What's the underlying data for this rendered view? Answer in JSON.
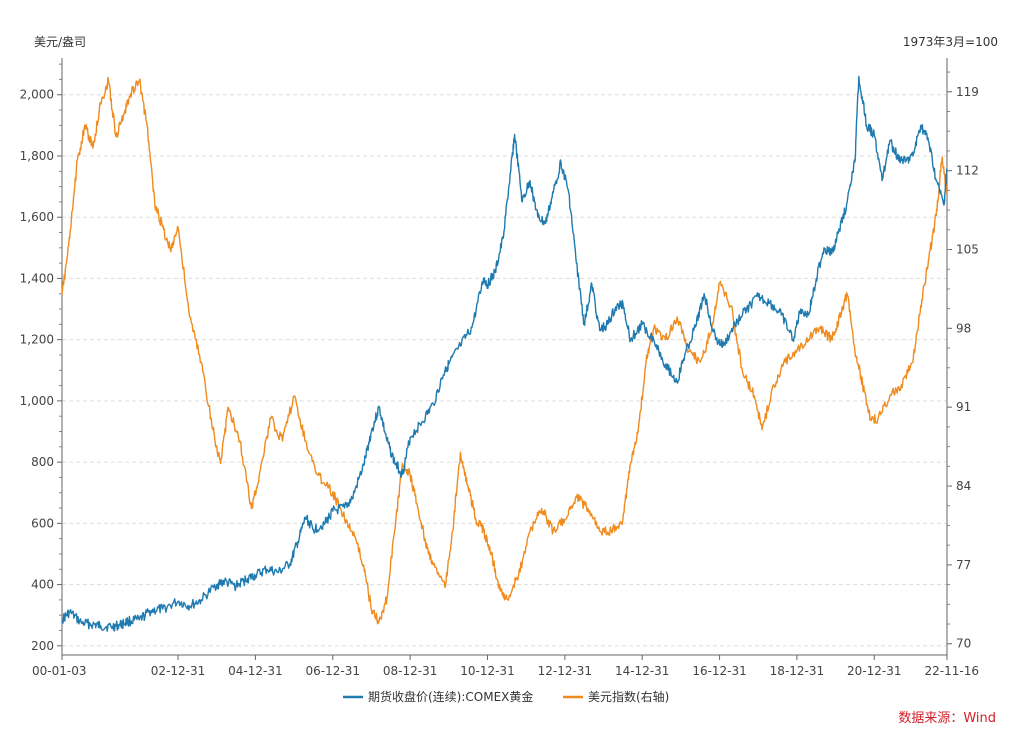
{
  "chart_data": {
    "type": "line",
    "title": "",
    "left_axis": {
      "title": "美元/盎司",
      "ylim": [
        170,
        2120
      ],
      "ticks": [
        200,
        400,
        600,
        800,
        1000,
        1200,
        1400,
        1600,
        1800,
        2000
      ],
      "tick_labels": [
        "200",
        "400",
        "600",
        "800",
        "1,000",
        "1,200",
        "1,400",
        "1,600",
        "1,800",
        "2,000"
      ]
    },
    "right_axis": {
      "title": "1973年3月=100",
      "ylim": [
        69.0,
        122.0
      ],
      "ticks": [
        70,
        77,
        84,
        91,
        98,
        105,
        112,
        119
      ],
      "tick_labels": [
        "70",
        "77",
        "84",
        "91",
        "98",
        "105",
        "112",
        "119"
      ]
    },
    "x_axis": {
      "xlim": [
        2000.0,
        2022.88
      ],
      "ticks": [
        2000.0,
        2003.0,
        2005.0,
        2007.0,
        2009.0,
        2011.0,
        2013.0,
        2015.0,
        2017.0,
        2019.0,
        2021.0,
        2022.88
      ],
      "tick_labels": [
        "00-01-03",
        "02-12-31",
        "04-12-31",
        "06-12-31",
        "08-12-31",
        "10-12-31",
        "12-12-31",
        "14-12-31",
        "16-12-31",
        "18-12-31",
        "20-12-31",
        "22-11-16"
      ]
    },
    "series": [
      {
        "name": "期货收盘价(连续):COMEX黄金",
        "axis": "left",
        "color": "#1f7ab0",
        "x": [
          2000.0,
          2000.2,
          2000.5,
          2000.8,
          2001.0,
          2001.3,
          2001.5,
          2001.7,
          2002.0,
          2002.3,
          2002.6,
          2003.0,
          2003.3,
          2003.6,
          2004.0,
          2004.2,
          2004.5,
          2004.8,
          2005.0,
          2005.3,
          2005.6,
          2005.9,
          2006.1,
          2006.3,
          2006.5,
          2006.8,
          2007.0,
          2007.3,
          2007.5,
          2007.8,
          2008.0,
          2008.2,
          2008.4,
          2008.6,
          2008.8,
          2009.0,
          2009.3,
          2009.6,
          2009.9,
          2010.0,
          2010.3,
          2010.6,
          2010.9,
          2011.0,
          2011.2,
          2011.4,
          2011.6,
          2011.7,
          2011.9,
          2012.1,
          2012.3,
          2012.5,
          2012.7,
          2012.9,
          2013.1,
          2013.3,
          2013.5,
          2013.7,
          2013.9,
          2014.1,
          2014.3,
          2014.5,
          2014.7,
          2015.0,
          2015.3,
          2015.6,
          2015.9,
          2016.1,
          2016.4,
          2016.6,
          2016.9,
          2017.1,
          2017.4,
          2017.7,
          2018.0,
          2018.3,
          2018.6,
          2018.9,
          2019.1,
          2019.3,
          2019.5,
          2019.7,
          2019.9,
          2020.1,
          2020.3,
          2020.5,
          2020.6,
          2020.8,
          2021.0,
          2021.2,
          2021.4,
          2021.6,
          2021.8,
          2022.0,
          2022.2,
          2022.4,
          2022.6,
          2022.8,
          2022.88
        ],
        "values": [
          285,
          310,
          275,
          270,
          265,
          262,
          268,
          280,
          285,
          315,
          320,
          345,
          330,
          350,
          400,
          410,
          395,
          420,
          430,
          450,
          440,
          470,
          540,
          620,
          580,
          600,
          640,
          650,
          680,
          790,
          900,
          980,
          870,
          800,
          760,
          880,
          930,
          990,
          1100,
          1120,
          1180,
          1240,
          1400,
          1380,
          1420,
          1530,
          1750,
          1870,
          1650,
          1720,
          1600,
          1580,
          1680,
          1780,
          1680,
          1450,
          1250,
          1380,
          1230,
          1250,
          1300,
          1320,
          1200,
          1250,
          1200,
          1120,
          1060,
          1150,
          1250,
          1350,
          1200,
          1180,
          1250,
          1300,
          1340,
          1320,
          1280,
          1200,
          1300,
          1280,
          1400,
          1500,
          1480,
          1560,
          1650,
          1780,
          2060,
          1900,
          1870,
          1720,
          1850,
          1800,
          1780,
          1800,
          1900,
          1850,
          1720,
          1640,
          1760
        ]
      },
      {
        "name": "美元指数(右轴)",
        "axis": "right",
        "color": "#f08b1e",
        "x": [
          2000.0,
          2000.2,
          2000.4,
          2000.6,
          2000.8,
          2001.0,
          2001.2,
          2001.4,
          2001.6,
          2001.8,
          2002.0,
          2002.2,
          2002.4,
          2002.6,
          2002.8,
          2003.0,
          2003.3,
          2003.6,
          2003.9,
          2004.1,
          2004.3,
          2004.6,
          2004.9,
          2005.1,
          2005.4,
          2005.7,
          2006.0,
          2006.3,
          2006.6,
          2006.9,
          2007.2,
          2007.5,
          2007.8,
          2008.0,
          2008.2,
          2008.4,
          2008.6,
          2008.8,
          2009.0,
          2009.2,
          2009.4,
          2009.6,
          2009.9,
          2010.1,
          2010.3,
          2010.5,
          2010.7,
          2010.9,
          2011.1,
          2011.3,
          2011.5,
          2011.8,
          2012.1,
          2012.4,
          2012.7,
          2013.0,
          2013.3,
          2013.6,
          2013.9,
          2014.2,
          2014.5,
          2014.7,
          2014.9,
          2015.1,
          2015.3,
          2015.6,
          2015.9,
          2016.2,
          2016.5,
          2016.8,
          2017.0,
          2017.3,
          2017.6,
          2017.9,
          2018.1,
          2018.4,
          2018.7,
          2019.0,
          2019.3,
          2019.6,
          2019.9,
          2020.1,
          2020.3,
          2020.5,
          2020.7,
          2020.9,
          2021.1,
          2021.4,
          2021.7,
          2022.0,
          2022.2,
          2022.4,
          2022.6,
          2022.75,
          2022.88
        ],
        "values": [
          101,
          106,
          113,
          116,
          114,
          118,
          120,
          115,
          117,
          119,
          120,
          116,
          109,
          107,
          105,
          107,
          99,
          95,
          89,
          86,
          91,
          88,
          82,
          85,
          90,
          88,
          92,
          88,
          85,
          84,
          82,
          80,
          77,
          73,
          72,
          74,
          80,
          86,
          85,
          82,
          79,
          77,
          75,
          80,
          87,
          84,
          81,
          80,
          78,
          75,
          74,
          76,
          80,
          82,
          80,
          81,
          83,
          82,
          80,
          80,
          81,
          86,
          89,
          95,
          98,
          97,
          99,
          96,
          95,
          98,
          102,
          100,
          94,
          92,
          89,
          93,
          95,
          96,
          97,
          98,
          97,
          99,
          101,
          96,
          93,
          90,
          90,
          92,
          93,
          95,
          100,
          104,
          108,
          113,
          110
        ]
      }
    ],
    "legend": [
      "期货收盘价(连续):COMEX黄金",
      "美元指数(右轴)"
    ],
    "legend_position": "bottom",
    "grid": true,
    "source": "数据来源：Wind"
  }
}
